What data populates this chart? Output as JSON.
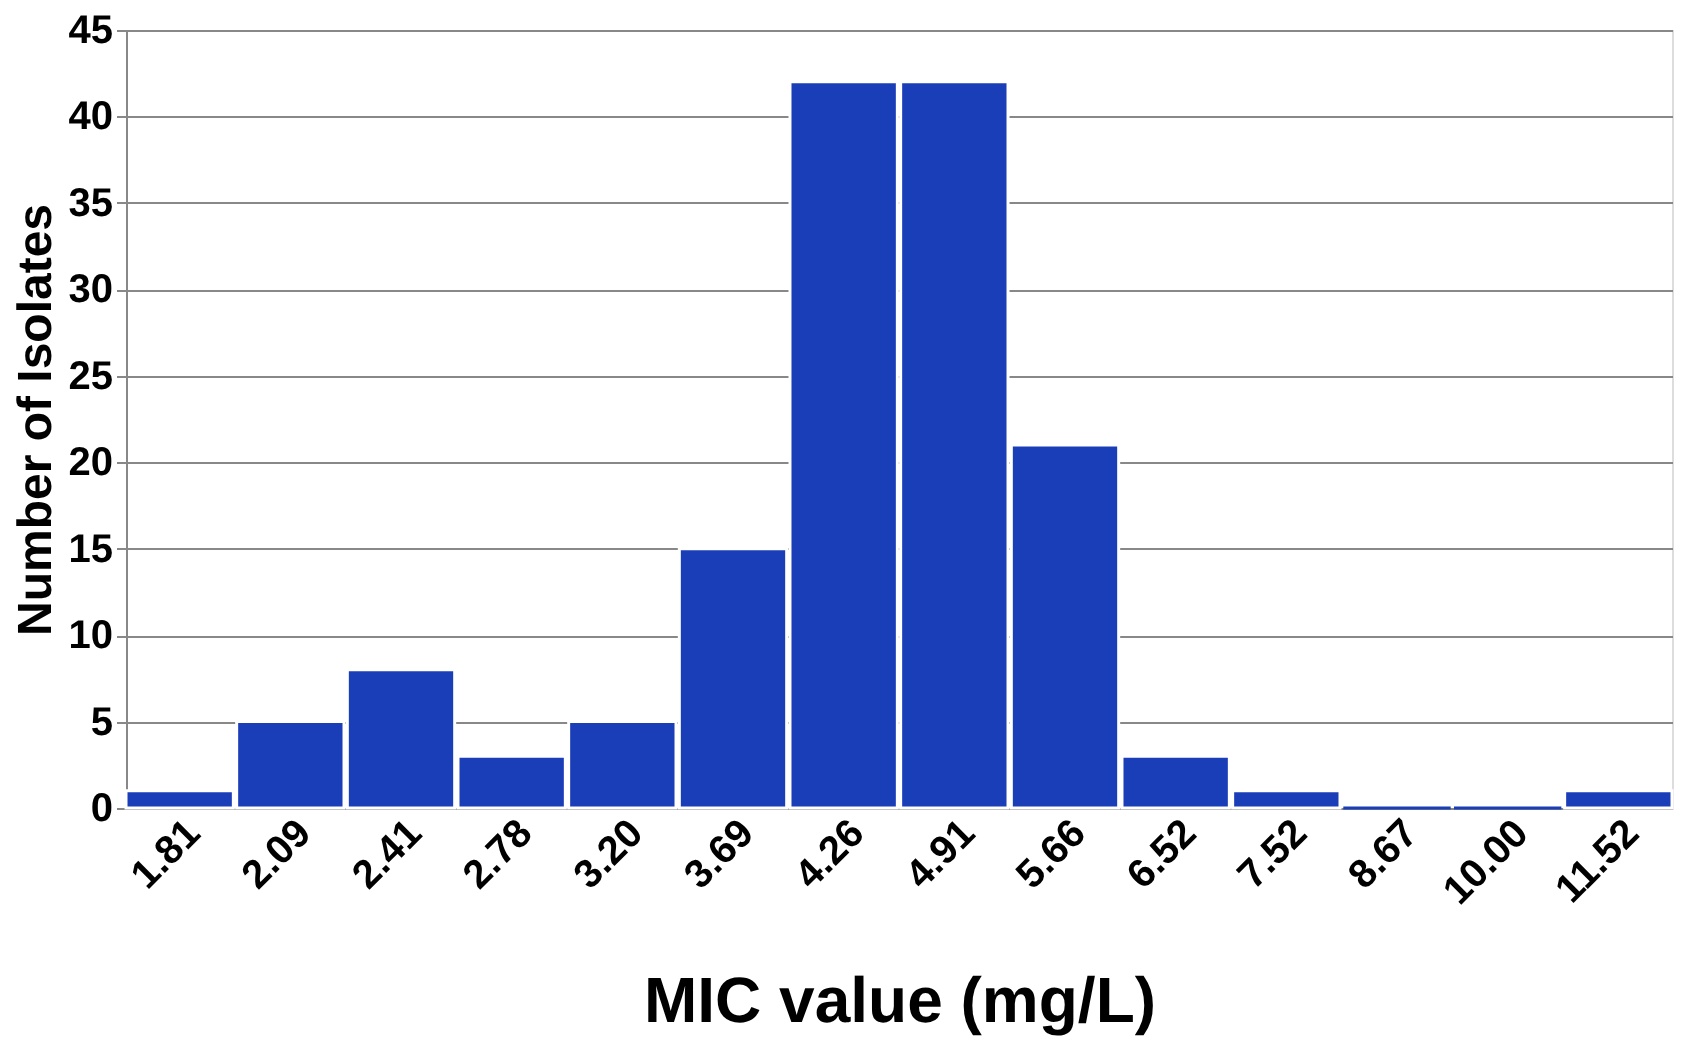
{
  "chart_data": {
    "type": "bar",
    "xlabel": "MIC value (mg/L)",
    "ylabel": "Number of Isolates",
    "categories": [
      "1.81",
      "2.09",
      "2.41",
      "2.78",
      "3.20",
      "3.69",
      "4.26",
      "4.91",
      "5.66",
      "6.52",
      "7.52",
      "8.67",
      "10.00",
      "11.52"
    ],
    "values": [
      1,
      5,
      8,
      3,
      5,
      15,
      42,
      42,
      21,
      3,
      1,
      0,
      0,
      1
    ],
    "color": "#1a3db8",
    "ylim": [
      0,
      45
    ],
    "yticks": [
      0,
      5,
      10,
      15,
      20,
      25,
      30,
      35,
      40,
      45
    ],
    "grid": "y"
  }
}
